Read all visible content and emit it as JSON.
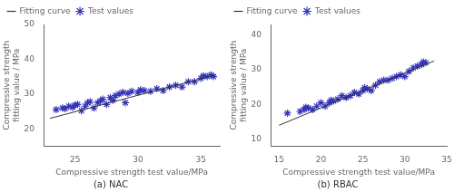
{
  "chart_data": [
    {
      "type": "scatter",
      "title": "(a) NAC",
      "xlabel": "Compressive strength test value/MPa",
      "ylabel": "Compressive strength\nfitting value / MPa",
      "xlim": [
        22.5,
        36.5
      ],
      "ylim": [
        15,
        50
      ],
      "xticks": [
        25,
        30,
        35
      ],
      "yticks": [
        20,
        30,
        40,
        50
      ],
      "grid": false,
      "legend": "upper left",
      "series": [
        {
          "name": "Fitting curve",
          "type": "line",
          "color": "#333333",
          "line_style": "solid",
          "x": [
            23.0,
            36.2
          ],
          "values": [
            23.0,
            35.5
          ]
        },
        {
          "name": "Test values",
          "type": "scatter",
          "color": "#3333bb",
          "marker": "star",
          "x": [
            23.5,
            24.0,
            24.2,
            24.5,
            24.8,
            25.0,
            25.2,
            25.5,
            25.8,
            26.0,
            26.2,
            26.5,
            26.8,
            27.0,
            27.2,
            27.5,
            27.8,
            28.0,
            28.2,
            28.5,
            28.8,
            29.0,
            29.2,
            29.5,
            30.0,
            30.2,
            30.5,
            31.0,
            31.5,
            32.0,
            32.5,
            33.0,
            33.5,
            34.0,
            34.5,
            35.0,
            35.2,
            35.5,
            35.8,
            36.0
          ],
          "values": [
            25.5,
            26.0,
            25.8,
            26.5,
            26.2,
            26.8,
            27.0,
            25.2,
            26.5,
            27.5,
            27.8,
            26.0,
            27.5,
            28.0,
            28.5,
            27.0,
            29.0,
            28.2,
            29.5,
            30.0,
            30.5,
            27.5,
            30.2,
            30.8,
            30.5,
            31.2,
            31.0,
            30.8,
            31.5,
            31.0,
            32.0,
            32.5,
            32.0,
            33.5,
            33.5,
            34.5,
            35.2,
            35.0,
            35.5,
            35.0
          ]
        }
      ]
    },
    {
      "type": "scatter",
      "title": "(b) RBAC",
      "xlabel": "Compressive strength test value/MPa",
      "ylabel": "Compressive strength\nfitting value / MPa",
      "xlim": [
        14,
        35
      ],
      "ylim": [
        8,
        43
      ],
      "xticks": [
        15,
        20,
        25,
        30,
        35
      ],
      "yticks": [
        10,
        20,
        30,
        40
      ],
      "grid": false,
      "legend": "upper left",
      "series": [
        {
          "name": "Fitting curve",
          "type": "line",
          "color": "#333333",
          "line_style": "solid",
          "x": [
            15.0,
            33.5
          ],
          "values": [
            14.0,
            32.5
          ]
        },
        {
          "name": "Test values",
          "type": "scatter",
          "color": "#3333bb",
          "marker": "star",
          "x": [
            16.0,
            17.5,
            18.0,
            18.2,
            18.5,
            19.0,
            19.5,
            20.0,
            20.5,
            21.0,
            21.2,
            21.5,
            22.0,
            22.5,
            23.0,
            23.5,
            24.0,
            24.5,
            25.0,
            25.2,
            25.5,
            26.0,
            26.5,
            27.0,
            27.5,
            28.0,
            28.5,
            29.0,
            29.5,
            30.0,
            30.5,
            31.0,
            31.5,
            32.0,
            32.2,
            32.5
          ],
          "values": [
            17.5,
            18.0,
            18.5,
            19.2,
            19.0,
            18.5,
            19.5,
            20.5,
            19.5,
            20.5,
            21.2,
            21.0,
            21.5,
            22.5,
            22.0,
            22.5,
            23.5,
            23.0,
            24.0,
            24.8,
            24.5,
            24.0,
            25.5,
            26.5,
            27.0,
            27.0,
            27.5,
            28.0,
            28.5,
            28.0,
            29.5,
            30.5,
            31.0,
            31.5,
            32.2,
            32.0
          ]
        }
      ]
    }
  ]
}
